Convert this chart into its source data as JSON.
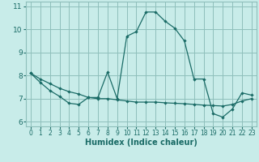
{
  "xlabel": "Humidex (Indice chaleur)",
  "background_color": "#c8ece9",
  "grid_color": "#8fbfbb",
  "line_color": "#1a6b66",
  "xlim": [
    -0.5,
    23.5
  ],
  "ylim": [
    5.8,
    11.2
  ],
  "xticks": [
    0,
    1,
    2,
    3,
    4,
    5,
    6,
    7,
    8,
    9,
    10,
    11,
    12,
    13,
    14,
    15,
    16,
    17,
    18,
    19,
    20,
    21,
    22,
    23
  ],
  "yticks": [
    6,
    7,
    8,
    9,
    10,
    11
  ],
  "curve1_x": [
    0,
    1,
    2,
    3,
    4,
    5,
    6,
    7,
    8,
    9,
    10,
    11,
    12,
    13,
    14,
    15,
    16,
    17,
    18,
    19,
    20,
    21,
    22,
    23
  ],
  "curve1_y": [
    8.1,
    7.7,
    7.35,
    7.1,
    6.8,
    6.75,
    7.05,
    7.05,
    8.15,
    7.0,
    9.7,
    9.9,
    10.75,
    10.75,
    10.35,
    10.05,
    9.5,
    7.85,
    7.85,
    6.35,
    6.2,
    6.55,
    7.25,
    7.15
  ],
  "curve2_x": [
    0,
    1,
    2,
    3,
    4,
    5,
    6,
    7,
    8,
    9,
    10,
    11,
    12,
    13,
    14,
    15,
    16,
    17,
    18,
    19,
    20,
    21,
    22,
    23
  ],
  "curve2_y": [
    8.1,
    7.85,
    7.65,
    7.45,
    7.3,
    7.2,
    7.05,
    7.0,
    7.0,
    6.95,
    6.9,
    6.85,
    6.85,
    6.85,
    6.82,
    6.8,
    6.78,
    6.75,
    6.72,
    6.7,
    6.68,
    6.75,
    6.9,
    7.0
  ]
}
